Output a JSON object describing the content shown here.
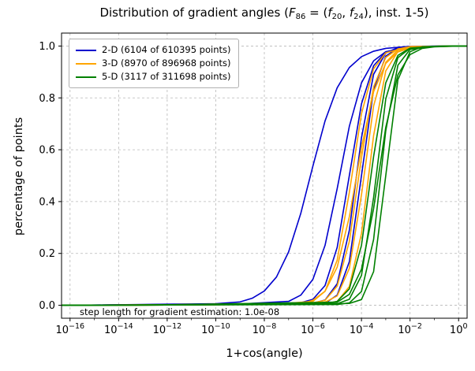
{
  "figure": {
    "title_segments": [
      {
        "t": "Distribution of gradient angles ("
      },
      {
        "t": "F",
        "i": true
      },
      {
        "t": "86",
        "sub": true
      },
      {
        "t": " = ("
      },
      {
        "t": "f",
        "i": true
      },
      {
        "t": "20",
        "sub": true
      },
      {
        "t": ", "
      },
      {
        "t": "f",
        "i": true
      },
      {
        "t": "24",
        "sub": true
      },
      {
        "t": "), inst. 1-5)"
      }
    ],
    "annotation_text": "step length for gradient estimation: 1.0e-08"
  },
  "legend": {
    "items": [
      {
        "label": "2-D (6104 of 610395 points)",
        "color": "#0000cd"
      },
      {
        "label": "3-D (8970 of 896968 points)",
        "color": "#ffa500"
      },
      {
        "label": "5-D (3117 of 311698 points)",
        "color": "#008000"
      }
    ]
  },
  "chart_data": {
    "type": "line",
    "title": "Distribution of gradient angles (F_86 = (f_20, f_24), inst. 1-5)",
    "xlabel": "1+cos(angle)",
    "ylabel": "percentage of points",
    "x_scale": "log10",
    "xlim_exp": [
      -16.35,
      0.35
    ],
    "ylim": [
      -0.05,
      1.05
    ],
    "x_ticks_exp": [
      -16,
      -14,
      -12,
      -10,
      -8,
      -6,
      -4,
      -2,
      0
    ],
    "y_ticks": [
      0.0,
      0.2,
      0.4,
      0.6,
      0.8,
      1.0
    ],
    "grid": true,
    "legend_position": "upper left",
    "annotation": {
      "text": "step length for gradient estimation: 1.0e-08",
      "x_exp": -8,
      "y": -0.03
    },
    "colors": {
      "2-D": "#0000cd",
      "3-D": "#ffa500",
      "5-D": "#008000"
    },
    "series": [
      {
        "name": "2-D-inst-1",
        "group": "2-D",
        "color": "#0000cd",
        "points": [
          [
            -16,
            0.0
          ],
          [
            -12,
            0.004
          ],
          [
            -10,
            0.006
          ],
          [
            -9,
            0.013
          ],
          [
            -8.5,
            0.027
          ],
          [
            -8,
            0.055
          ],
          [
            -7.5,
            0.109
          ],
          [
            -7,
            0.206
          ],
          [
            -6.5,
            0.354
          ],
          [
            -6,
            0.537
          ],
          [
            -5.5,
            0.711
          ],
          [
            -5,
            0.839
          ],
          [
            -4.5,
            0.917
          ],
          [
            -4,
            0.959
          ],
          [
            -3.5,
            0.98
          ],
          [
            -3,
            0.991
          ],
          [
            -2,
            0.999
          ],
          [
            0,
            1.0
          ]
        ]
      },
      {
        "name": "2-D-inst-2",
        "group": "2-D",
        "color": "#0000cd",
        "points": [
          [
            -16,
            0.0
          ],
          [
            -12,
            0.003
          ],
          [
            -9,
            0.005
          ],
          [
            -7,
            0.015
          ],
          [
            -6.5,
            0.039
          ],
          [
            -6,
            0.1
          ],
          [
            -5.5,
            0.231
          ],
          [
            -5,
            0.45
          ],
          [
            -4.5,
            0.69
          ],
          [
            -4,
            0.858
          ],
          [
            -3.5,
            0.943
          ],
          [
            -3,
            0.978
          ],
          [
            -2,
            0.997
          ],
          [
            0,
            1.0
          ]
        ]
      },
      {
        "name": "2-D-inst-3",
        "group": "2-D",
        "color": "#0000cd",
        "points": [
          [
            -16,
            0.0
          ],
          [
            -12,
            0.002
          ],
          [
            -8,
            0.006
          ],
          [
            -6.5,
            0.01
          ],
          [
            -6,
            0.023
          ],
          [
            -5.5,
            0.076
          ],
          [
            -5,
            0.223
          ],
          [
            -4.5,
            0.5
          ],
          [
            -4,
            0.777
          ],
          [
            -3.5,
            0.924
          ],
          [
            -3,
            0.977
          ],
          [
            -2,
            0.998
          ],
          [
            0,
            1.0
          ]
        ]
      },
      {
        "name": "2-D-inst-4",
        "group": "2-D",
        "color": "#0000cd",
        "points": [
          [
            -16,
            0.0
          ],
          [
            -12,
            0.002
          ],
          [
            -7,
            0.005
          ],
          [
            -6,
            0.008
          ],
          [
            -5.5,
            0.02
          ],
          [
            -5,
            0.083
          ],
          [
            -4.5,
            0.289
          ],
          [
            -4,
            0.646
          ],
          [
            -3.5,
            0.891
          ],
          [
            -3,
            0.973
          ],
          [
            -2.5,
            0.994
          ],
          [
            -2,
            0.998
          ],
          [
            0,
            1.0
          ]
        ]
      },
      {
        "name": "2-D-inst-5",
        "group": "2-D",
        "color": "#0000cd",
        "points": [
          [
            -16,
            0.0
          ],
          [
            -12,
            0.001
          ],
          [
            -6,
            0.004
          ],
          [
            -5.5,
            0.008
          ],
          [
            -5,
            0.039
          ],
          [
            -4.5,
            0.168
          ],
          [
            -4,
            0.5
          ],
          [
            -3.5,
            0.832
          ],
          [
            -3,
            0.961
          ],
          [
            -2.5,
            0.992
          ],
          [
            -2,
            0.998
          ],
          [
            0,
            1.0
          ]
        ]
      },
      {
        "name": "3-D-inst-1",
        "group": "3-D",
        "color": "#ffa500",
        "points": [
          [
            -16,
            0.0
          ],
          [
            -12,
            0.002
          ],
          [
            -7,
            0.008
          ],
          [
            -6,
            0.015
          ],
          [
            -5.5,
            0.054
          ],
          [
            -5,
            0.174
          ],
          [
            -4.5,
            0.435
          ],
          [
            -4,
            0.739
          ],
          [
            -3.5,
            0.912
          ],
          [
            -3,
            0.974
          ],
          [
            -2,
            0.998
          ],
          [
            0,
            1.0
          ]
        ]
      },
      {
        "name": "3-D-inst-2",
        "group": "3-D",
        "color": "#ffa500",
        "points": [
          [
            -16,
            0.0
          ],
          [
            -12,
            0.001
          ],
          [
            -6.5,
            0.005
          ],
          [
            -6,
            0.009
          ],
          [
            -5.5,
            0.019
          ],
          [
            -5,
            0.074
          ],
          [
            -4.5,
            0.246
          ],
          [
            -4,
            0.57
          ],
          [
            -3.5,
            0.843
          ],
          [
            -3,
            0.956
          ],
          [
            -2.5,
            0.989
          ],
          [
            -2,
            0.997
          ],
          [
            0,
            1.0
          ]
        ]
      },
      {
        "name": "3-D-inst-3",
        "group": "3-D",
        "color": "#ffa500",
        "points": [
          [
            -16,
            0.0
          ],
          [
            -12,
            0.001
          ],
          [
            -6,
            0.004
          ],
          [
            -5.5,
            0.012
          ],
          [
            -5,
            0.036
          ],
          [
            -4.5,
            0.142
          ],
          [
            -4,
            0.426
          ],
          [
            -3.5,
            0.769
          ],
          [
            -3,
            0.937
          ],
          [
            -2.5,
            0.985
          ],
          [
            -2,
            0.996
          ],
          [
            0,
            1.0
          ]
        ]
      },
      {
        "name": "3-D-inst-4",
        "group": "3-D",
        "color": "#ffa500",
        "points": [
          [
            -16,
            0.0
          ],
          [
            -12,
            0.001
          ],
          [
            -5.5,
            0.006
          ],
          [
            -5,
            0.015
          ],
          [
            -4.5,
            0.072
          ],
          [
            -4,
            0.277
          ],
          [
            -3.5,
            0.655
          ],
          [
            -3,
            0.904
          ],
          [
            -2.5,
            0.979
          ],
          [
            -2,
            0.995
          ],
          [
            0,
            1.0
          ]
        ]
      },
      {
        "name": "3-D-inst-5",
        "group": "3-D",
        "color": "#ffa500",
        "points": [
          [
            -16,
            0.0
          ],
          [
            -12,
            0.002
          ],
          [
            -7,
            0.004
          ],
          [
            -6.5,
            0.006
          ],
          [
            -6,
            0.019
          ],
          [
            -5.5,
            0.054
          ],
          [
            -5,
            0.147
          ],
          [
            -4.5,
            0.341
          ],
          [
            -4,
            0.608
          ],
          [
            -3.5,
            0.824
          ],
          [
            -3,
            0.933
          ],
          [
            -2.5,
            0.977
          ],
          [
            -2,
            0.992
          ],
          [
            -1,
            0.999
          ],
          [
            0,
            1.0
          ]
        ]
      },
      {
        "name": "5-D-inst-1",
        "group": "5-D",
        "color": "#008000",
        "points": [
          [
            -16,
            0.0
          ],
          [
            -12,
            0.001
          ],
          [
            -5.5,
            0.006
          ],
          [
            -5,
            0.015
          ],
          [
            -4.5,
            0.063
          ],
          [
            -4,
            0.231
          ],
          [
            -3.5,
            0.574
          ],
          [
            -3,
            0.858
          ],
          [
            -2.5,
            0.964
          ],
          [
            -2,
            0.992
          ],
          [
            -1,
            0.999
          ],
          [
            0,
            1.0
          ]
        ]
      },
      {
        "name": "5-D-inst-2",
        "group": "5-D",
        "color": "#008000",
        "points": [
          [
            -16,
            0.0
          ],
          [
            -12,
            0.001
          ],
          [
            -5,
            0.006
          ],
          [
            -4.5,
            0.023
          ],
          [
            -4,
            0.115
          ],
          [
            -3.5,
            0.416
          ],
          [
            -3,
            0.796
          ],
          [
            -2.5,
            0.955
          ],
          [
            -2,
            0.991
          ],
          [
            -1,
            0.999
          ],
          [
            0,
            1.0
          ]
        ]
      },
      {
        "name": "5-D-inst-3",
        "group": "5-D",
        "color": "#008000",
        "points": [
          [
            -16,
            0.0
          ],
          [
            -12,
            0.001
          ],
          [
            -5,
            0.003
          ],
          [
            -4.5,
            0.009
          ],
          [
            -4,
            0.053
          ],
          [
            -3.5,
            0.254
          ],
          [
            -3,
            0.673
          ],
          [
            -2.5,
            0.926
          ],
          [
            -2,
            0.987
          ],
          [
            -1,
            0.999
          ],
          [
            0,
            1.0
          ]
        ]
      },
      {
        "name": "5-D-inst-4",
        "group": "5-D",
        "color": "#008000",
        "points": [
          [
            -16,
            0.0
          ],
          [
            -12,
            0.001
          ],
          [
            -4.5,
            0.007
          ],
          [
            -4,
            0.022
          ],
          [
            -3.5,
            0.13
          ],
          [
            -3,
            0.5
          ],
          [
            -2.5,
            0.87
          ],
          [
            -2,
            0.978
          ],
          [
            -1.5,
            0.997
          ],
          [
            -1,
            0.999
          ],
          [
            0,
            1.0
          ]
        ]
      },
      {
        "name": "5-D-inst-5",
        "group": "5-D",
        "color": "#008000",
        "points": [
          [
            -16,
            0.0
          ],
          [
            -12,
            0.002
          ],
          [
            -5,
            0.012
          ],
          [
            -4.5,
            0.042
          ],
          [
            -4,
            0.139
          ],
          [
            -3.5,
            0.373
          ],
          [
            -3,
            0.686
          ],
          [
            -2.5,
            0.889
          ],
          [
            -2,
            0.967
          ],
          [
            -1.5,
            0.991
          ],
          [
            -1,
            0.997
          ],
          [
            0,
            1.0
          ]
        ]
      }
    ]
  }
}
